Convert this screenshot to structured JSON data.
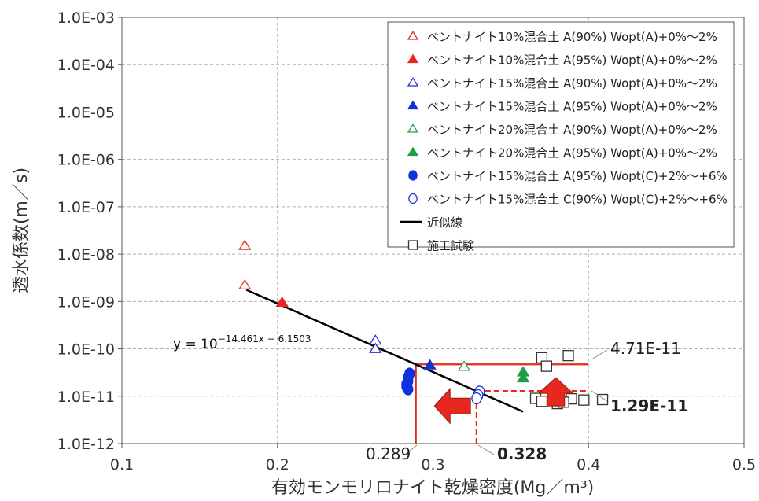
{
  "chart_data": {
    "type": "scatter",
    "title": "",
    "xlabel": "有効モンモリロナイト乾燥密度(Mg／m³)",
    "ylabel": "透水係数(m／s)",
    "xscale": "linear",
    "yscale": "log",
    "xlim": [
      0.1,
      0.5
    ],
    "ylim_exp": [
      -12,
      -3
    ],
    "x_ticks": [
      "0.1",
      "0.2",
      "0.3",
      "0.4",
      "0.5"
    ],
    "y_ticks": [
      "1.0E-03",
      "1.0E-04",
      "1.0E-05",
      "1.0E-06",
      "1.0E-07",
      "1.0E-08",
      "1.0E-09",
      "1.0E-10",
      "1.0E-11",
      "1.0E-12"
    ],
    "grid": true,
    "legend_position": "top-right",
    "series": [
      {
        "name": "ベントナイト10%混合土 A(90%) Wopt(A)+0%～2%",
        "marker": "triangle",
        "filled": false,
        "color": "#e8281e",
        "points": [
          [
            0.179,
            1.5e-08
          ],
          [
            0.179,
            2.2e-09
          ]
        ]
      },
      {
        "name": "ベントナイト10%混合土 A(95%) Wopt(A)+0%～2%",
        "marker": "triangle",
        "filled": true,
        "color": "#e8281e",
        "points": [
          [
            0.203,
            9.5e-10
          ]
        ]
      },
      {
        "name": "ベントナイト15%混合土 A(90%) Wopt(A)+0%～2%",
        "marker": "triangle",
        "filled": false,
        "color": "#2233cc",
        "points": [
          [
            0.263,
            1.5e-10
          ],
          [
            0.263,
            1e-10
          ]
        ]
      },
      {
        "name": "ベントナイト15%混合土 A(95%) Wopt(A)+0%～2%",
        "marker": "triangle",
        "filled": true,
        "color": "#1133cc",
        "points": [
          [
            0.298,
            4.5e-11
          ]
        ]
      },
      {
        "name": "ベントナイト20%混合土 A(90%) Wopt(A)+0%～2%",
        "marker": "triangle",
        "filled": false,
        "color": "#2aa04a",
        "points": [
          [
            0.32,
            4.2e-11
          ]
        ]
      },
      {
        "name": "ベントナイト20%混合土 A(95%) Wopt(A)+0%～2%",
        "marker": "triangle",
        "filled": true,
        "color": "#1e9e48",
        "points": [
          [
            0.358,
            3.2e-11
          ],
          [
            0.358,
            2.4e-11
          ]
        ]
      },
      {
        "name": "ベントナイト15%混合土 A(95%) Wopt(C)+2%～+6%",
        "marker": "circle",
        "filled": true,
        "color": "#1133dd",
        "points": [
          [
            0.285,
            3e-11
          ],
          [
            0.284,
            2.5e-11
          ],
          [
            0.284,
            2.1e-11
          ],
          [
            0.283,
            1.8e-11
          ],
          [
            0.283,
            1.6e-11
          ],
          [
            0.284,
            1.4e-11
          ]
        ]
      },
      {
        "name": "ベントナイト15%混合土 C(90%) Wopt(C)+2%～+6%",
        "marker": "circle",
        "filled": false,
        "color": "#1133dd",
        "points": [
          [
            0.33,
            1.25e-11
          ],
          [
            0.329,
            1.05e-11
          ],
          [
            0.328,
            9e-12
          ]
        ]
      },
      {
        "name": "近似線",
        "marker": "line",
        "color": "#000000",
        "x": [
          0.18,
          0.358
        ]
      },
      {
        "name": "施工試験",
        "marker": "square",
        "filled": false,
        "color": "#333333",
        "points": [
          [
            0.37,
            6.5e-11
          ],
          [
            0.373,
            4.3e-11
          ],
          [
            0.387,
            7.2e-11
          ],
          [
            0.366,
            9e-12
          ],
          [
            0.37,
            7.8e-12
          ],
          [
            0.38,
            7e-12
          ],
          [
            0.389,
            8.8e-12
          ],
          [
            0.384,
            7.5e-12
          ],
          [
            0.397,
            8.3e-12
          ],
          [
            0.409,
            8.5e-12
          ],
          [
            0.378,
            1.05e-11
          ]
        ]
      }
    ],
    "fit_equation": {
      "base": "y = 10",
      "exponent": "−14.461x − 6.1503"
    },
    "fit": {
      "slope": -14.461,
      "intercept": -6.1503
    },
    "reference_lines": [
      {
        "type": "solid",
        "x": 0.289,
        "y": 4.71e-11,
        "x_end": 0.4,
        "color": "#e8281e"
      },
      {
        "type": "dashed",
        "x": 0.328,
        "y": 1.29e-11,
        "x_end": 0.4,
        "color": "#e8281e"
      }
    ],
    "annotations": {
      "upper_y_value": "4.71E-11",
      "lower_y_value": "1.29E-11",
      "left_x_value": "0.289",
      "right_x_value": "0.328"
    },
    "arrows": [
      {
        "direction": "up",
        "x": 0.379,
        "y": 1.15e-11,
        "color": "#e8281e"
      },
      {
        "direction": "left",
        "x": 0.314,
        "y": 6.2e-12,
        "color": "#e8281e"
      }
    ]
  }
}
